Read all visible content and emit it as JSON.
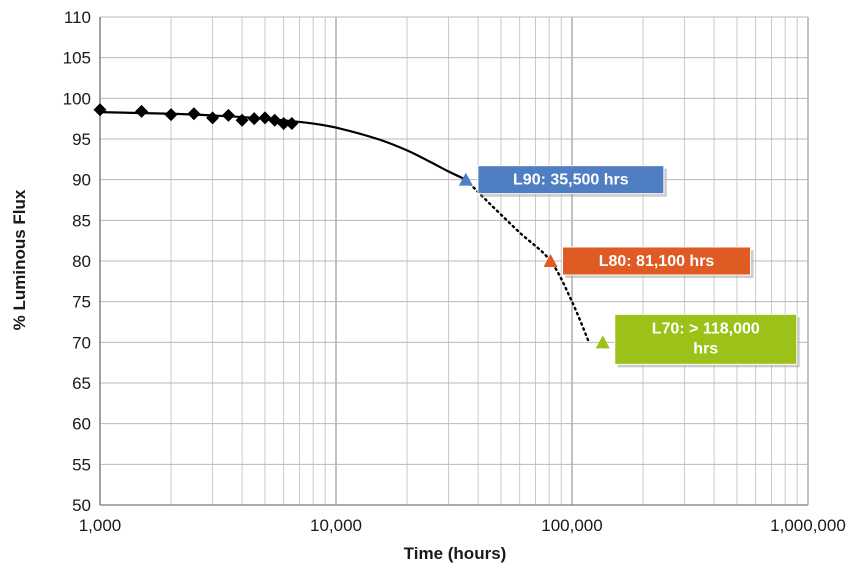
{
  "chart_data": {
    "type": "scatter",
    "title": "",
    "xlabel": "Time (hours)",
    "ylabel": "% Luminous Flux",
    "x_scale": "log",
    "xlim": [
      1000,
      1000000
    ],
    "ylim": [
      50,
      110
    ],
    "grid": true,
    "x_ticks": [
      {
        "value": 1000,
        "label": "1,000"
      },
      {
        "value": 10000,
        "label": "10,000"
      },
      {
        "value": 100000,
        "label": "100,000"
      },
      {
        "value": 1000000,
        "label": "1,000,000"
      }
    ],
    "y_ticks": [
      {
        "value": 50,
        "label": "50"
      },
      {
        "value": 55,
        "label": "55"
      },
      {
        "value": 60,
        "label": "60"
      },
      {
        "value": 65,
        "label": "65"
      },
      {
        "value": 70,
        "label": "70"
      },
      {
        "value": 75,
        "label": "75"
      },
      {
        "value": 80,
        "label": "80"
      },
      {
        "value": 85,
        "label": "85"
      },
      {
        "value": 90,
        "label": "90"
      },
      {
        "value": 95,
        "label": "95"
      },
      {
        "value": 100,
        "label": "100"
      },
      {
        "value": 105,
        "label": "105"
      },
      {
        "value": 110,
        "label": "110"
      }
    ],
    "measured": {
      "x": [
        1000,
        1500,
        2000,
        2500,
        3000,
        3500,
        4000,
        4500,
        5000,
        5500,
        6000,
        6500
      ],
      "y": [
        98.6,
        98.4,
        98.0,
        98.1,
        97.6,
        97.9,
        97.3,
        97.5,
        97.6,
        97.3,
        96.9,
        96.9
      ],
      "marker": "diamond",
      "color": "#000000"
    },
    "fit_curve": {
      "x": [
        1000,
        2000,
        3000,
        4000,
        5000,
        6000,
        7000,
        8000,
        10000,
        15000,
        20000,
        25000,
        30000,
        35500
      ],
      "y": [
        98.3,
        98.1,
        97.9,
        97.7,
        97.5,
        97.3,
        97.1,
        96.9,
        96.4,
        95.0,
        93.6,
        92.2,
        91.0,
        90.0
      ],
      "style": "solid",
      "color": "#000000"
    },
    "projection": {
      "x": [
        35500,
        45000,
        60000,
        81100,
        100000,
        118000
      ],
      "y": [
        90.0,
        87.0,
        83.5,
        80.0,
        75.0,
        70.0
      ],
      "style": "dotted",
      "color": "#000000"
    },
    "milestones": [
      {
        "x": 35500,
        "y": 90,
        "label": "L90: 35,500 hrs",
        "color": "#4f7ec2"
      },
      {
        "x": 81100,
        "y": 80,
        "label": "L80: 81,100 hrs",
        "color": "#e05a24"
      },
      {
        "x": 135000,
        "y": 70,
        "label_lines": [
          "L70: > 118,000",
          "hrs"
        ],
        "color": "#9cc21a"
      }
    ]
  }
}
